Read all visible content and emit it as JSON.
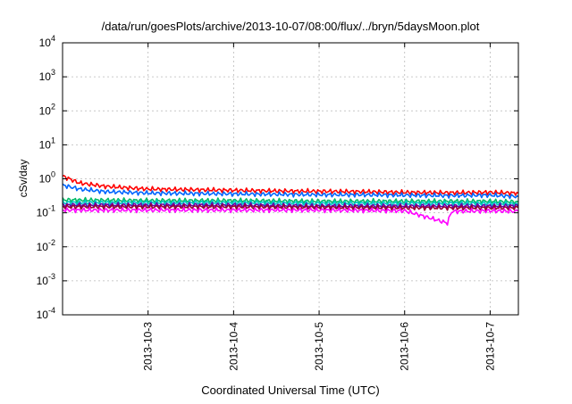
{
  "chart_data": {
    "type": "line",
    "title": "/data/run/goesPlots/archive/2013-10-07/08:00/flux/../bryn/5daysMoon.plot",
    "xlabel": "Coordinated Universal Time (UTC)",
    "ylabel": "cSv/day",
    "yscale": "log",
    "ylim": [
      0.0001,
      10000
    ],
    "xlim_days": [
      0,
      5.33
    ],
    "grid": true,
    "x_ticks": [
      {
        "label": "2013-10-3",
        "day": 1
      },
      {
        "label": "2013-10-4",
        "day": 2
      },
      {
        "label": "2013-10-5",
        "day": 3
      },
      {
        "label": "2013-10-6",
        "day": 4
      },
      {
        "label": "2013-10-7",
        "day": 5
      }
    ],
    "y_ticks": [
      {
        "exp": "-4",
        "value": 0.0001
      },
      {
        "exp": "-3",
        "value": 0.001
      },
      {
        "exp": "-2",
        "value": 0.01
      },
      {
        "exp": "-1",
        "value": 0.1
      },
      {
        "exp": "0",
        "value": 1
      },
      {
        "exp": "1",
        "value": 10
      },
      {
        "exp": "2",
        "value": 100
      },
      {
        "exp": "3",
        "value": 1000
      },
      {
        "exp": "4",
        "value": 10000
      }
    ],
    "series": [
      {
        "color": "#ff0000",
        "values": [
          {
            "day": 0.0,
            "y": 1.2
          },
          {
            "day": 0.2,
            "y": 0.75
          },
          {
            "day": 0.5,
            "y": 0.6
          },
          {
            "day": 1.0,
            "y": 0.5
          },
          {
            "day": 1.5,
            "y": 0.48
          },
          {
            "day": 2.0,
            "y": 0.46
          },
          {
            "day": 2.5,
            "y": 0.44
          },
          {
            "day": 3.0,
            "y": 0.43
          },
          {
            "day": 3.5,
            "y": 0.42
          },
          {
            "day": 4.0,
            "y": 0.4
          },
          {
            "day": 4.5,
            "y": 0.39
          },
          {
            "day": 5.0,
            "y": 0.4
          },
          {
            "day": 5.33,
            "y": 0.38
          }
        ]
      },
      {
        "color": "#0066ff",
        "values": [
          {
            "day": 0.0,
            "y": 0.65
          },
          {
            "day": 0.2,
            "y": 0.5
          },
          {
            "day": 0.5,
            "y": 0.42
          },
          {
            "day": 1.0,
            "y": 0.38
          },
          {
            "day": 1.5,
            "y": 0.37
          },
          {
            "day": 2.0,
            "y": 0.36
          },
          {
            "day": 2.5,
            "y": 0.35
          },
          {
            "day": 3.0,
            "y": 0.34
          },
          {
            "day": 3.5,
            "y": 0.34
          },
          {
            "day": 4.0,
            "y": 0.33
          },
          {
            "day": 4.5,
            "y": 0.32
          },
          {
            "day": 5.0,
            "y": 0.33
          },
          {
            "day": 5.33,
            "y": 0.3
          }
        ]
      },
      {
        "color": "#00bb66",
        "values": [
          {
            "day": 0.0,
            "y": 0.24
          },
          {
            "day": 1.0,
            "y": 0.23
          },
          {
            "day": 2.0,
            "y": 0.23
          },
          {
            "day": 3.0,
            "y": 0.22
          },
          {
            "day": 4.0,
            "y": 0.22
          },
          {
            "day": 5.0,
            "y": 0.22
          },
          {
            "day": 5.33,
            "y": 0.21
          }
        ]
      },
      {
        "color": "#00c8c8",
        "values": [
          {
            "day": 0.0,
            "y": 0.2
          },
          {
            "day": 1.0,
            "y": 0.2
          },
          {
            "day": 2.0,
            "y": 0.2
          },
          {
            "day": 3.0,
            "y": 0.19
          },
          {
            "day": 4.0,
            "y": 0.19
          },
          {
            "day": 5.0,
            "y": 0.19
          },
          {
            "day": 5.33,
            "y": 0.18
          }
        ]
      },
      {
        "color": "#6600aa",
        "values": [
          {
            "day": 0.0,
            "y": 0.17
          },
          {
            "day": 1.0,
            "y": 0.17
          },
          {
            "day": 2.0,
            "y": 0.17
          },
          {
            "day": 3.0,
            "y": 0.16
          },
          {
            "day": 4.0,
            "y": 0.16
          },
          {
            "day": 5.0,
            "y": 0.16
          },
          {
            "day": 5.33,
            "y": 0.16
          }
        ]
      },
      {
        "color": "#990033",
        "values": [
          {
            "day": 0.0,
            "y": 0.15
          },
          {
            "day": 1.0,
            "y": 0.15
          },
          {
            "day": 2.0,
            "y": 0.15
          },
          {
            "day": 3.0,
            "y": 0.145
          },
          {
            "day": 4.0,
            "y": 0.14
          },
          {
            "day": 5.0,
            "y": 0.14
          },
          {
            "day": 5.33,
            "y": 0.14
          }
        ]
      },
      {
        "color": "#ff00ff",
        "values": [
          {
            "day": 0.0,
            "y": 0.12
          },
          {
            "day": 1.0,
            "y": 0.12
          },
          {
            "day": 2.0,
            "y": 0.12
          },
          {
            "day": 3.0,
            "y": 0.12
          },
          {
            "day": 4.0,
            "y": 0.115
          },
          {
            "day": 4.5,
            "y": 0.05
          },
          {
            "day": 4.55,
            "y": 0.11
          },
          {
            "day": 5.0,
            "y": 0.115
          },
          {
            "day": 5.33,
            "y": 0.11
          }
        ]
      }
    ]
  }
}
